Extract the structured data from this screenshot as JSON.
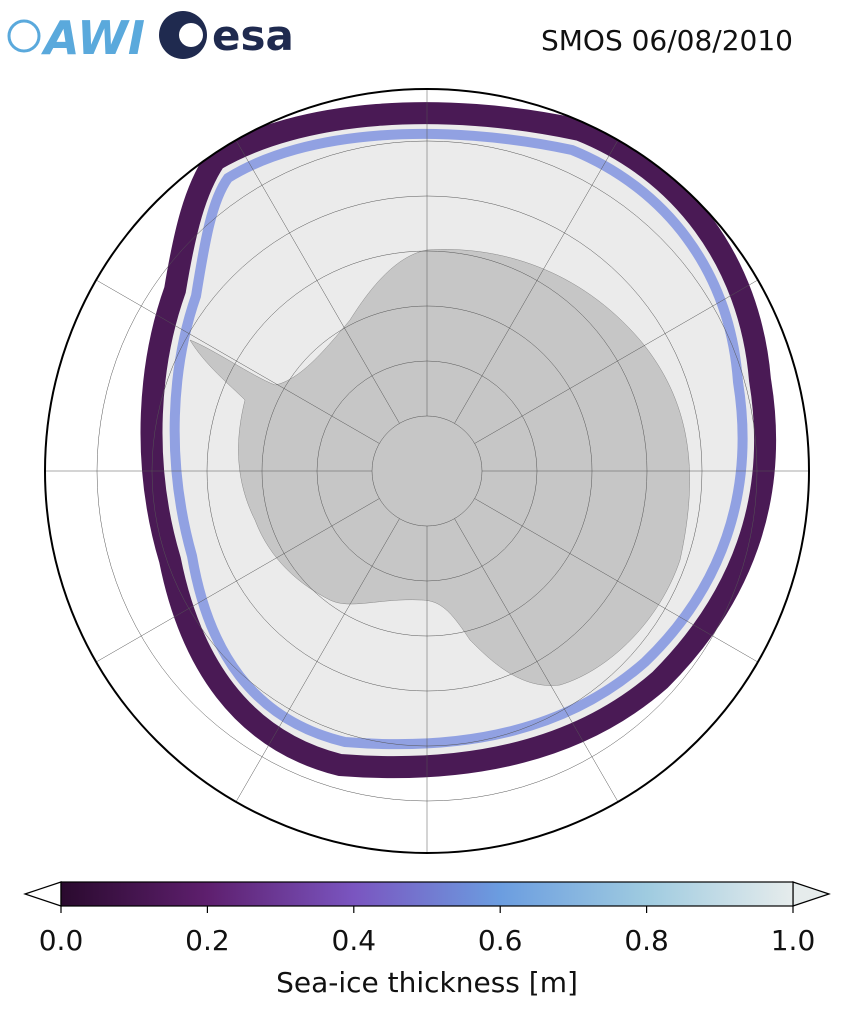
{
  "header": {
    "logos": [
      "AWI",
      "esa"
    ],
    "title": "SMOS 06/08/2010"
  },
  "map": {
    "colorbar": {
      "label": "Sea-ice thickness [m]",
      "lim": [
        0,
        1
      ],
      "ticks": [
        {
          "value": 0,
          "label": "0.0"
        },
        0.2,
        0.4,
        0.6,
        0.8,
        {
          "value": 1,
          "label": "1.0"
        }
      ],
      "colors": [
        "#2a0a2e",
        "#5e1f6e",
        "#7a55c0",
        "#6b9de0",
        "#9fcbe0",
        "#e6ecec"
      ]
    }
  }
}
